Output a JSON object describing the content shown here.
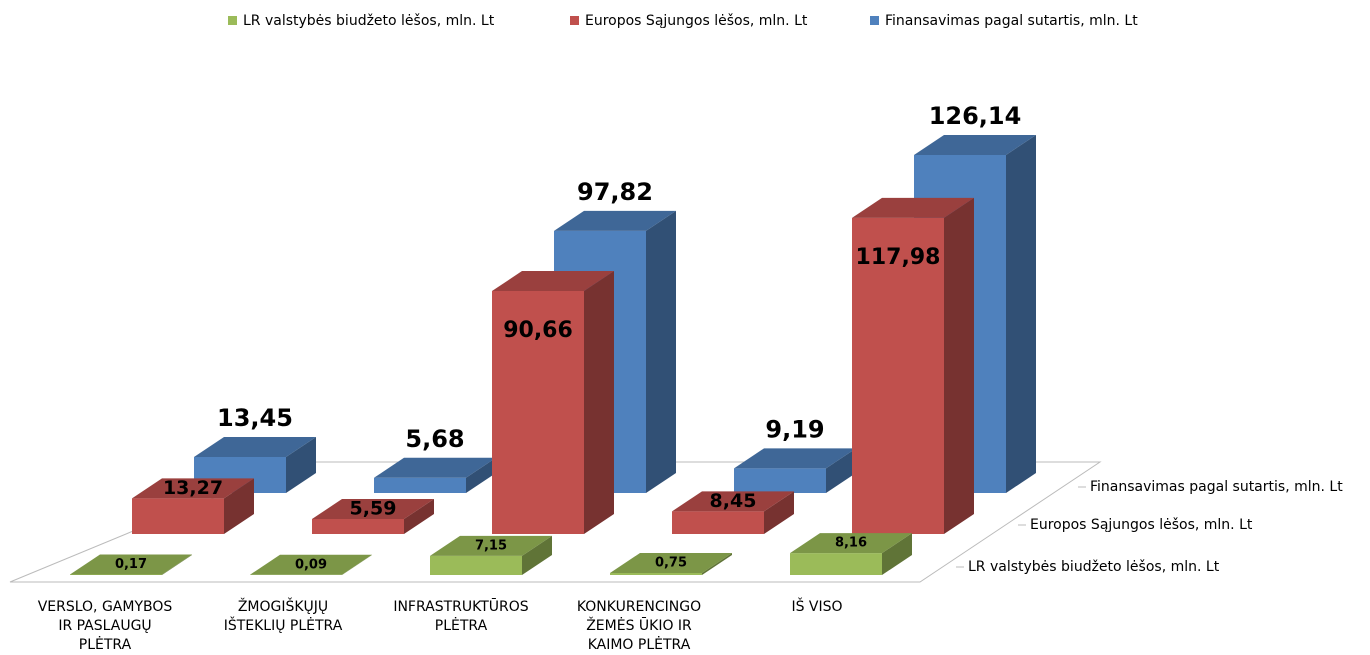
{
  "chart_data": {
    "type": "bar3d",
    "categories": [
      "VERSLO, GAMYBOS IR PASLAUGŲ PLĖTRA",
      "ŽMOGIŠKŲJŲ IŠTEKLIŲ PLĖTRA",
      "INFRASTRUKTŪROS PLĖTRA",
      "KONKURENCINGO ŽEMĖS ŪKIO IR KAIMO PLĖTRA",
      "IŠ VISO"
    ],
    "series": [
      {
        "name": "LR valstybės biudžeto lėšos, mln. Lt",
        "color": "#9bbb59",
        "values": [
          0.17,
          0.09,
          7.15,
          0.75,
          8.16
        ],
        "value_labels": [
          "0,17",
          "0,09",
          "7,15",
          "0,75",
          "8,16"
        ]
      },
      {
        "name": "Europos Sąjungos lėšos, mln. Lt",
        "color": "#c0504d",
        "values": [
          13.27,
          5.59,
          90.66,
          8.45,
          117.98
        ],
        "value_labels": [
          "13,27",
          "5,59",
          "90,66",
          "8,45",
          "117,98"
        ]
      },
      {
        "name": "Finansavimas pagal sutartis, mln. Lt",
        "color": "#4f81bd",
        "values": [
          13.45,
          5.68,
          97.82,
          9.19,
          126.14
        ],
        "value_labels": [
          "13,45",
          "5,68",
          "97,82",
          "9,19",
          "126,14"
        ]
      }
    ],
    "legend": "top"
  }
}
